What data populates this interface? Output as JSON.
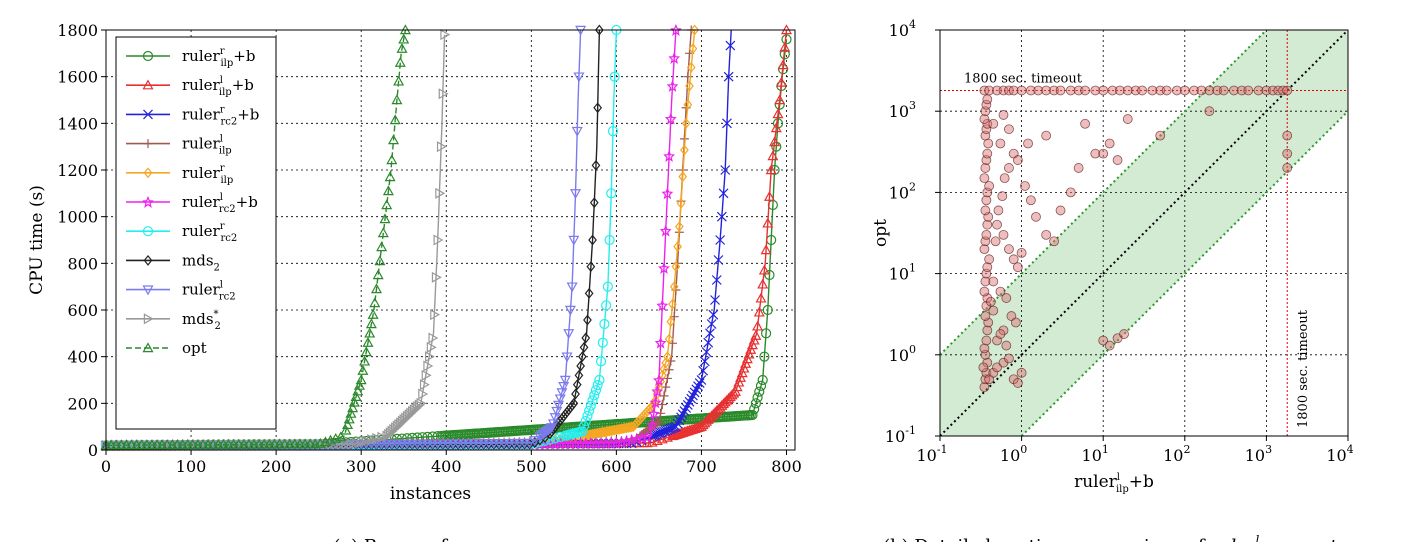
{
  "chart_data": [
    {
      "type": "line",
      "caption": "(a) Raw performance",
      "xlabel": "instances",
      "ylabel": "CPU time (s)",
      "xlim": [
        0,
        810
      ],
      "ylim": [
        0,
        1800
      ],
      "xticks": [
        "0",
        "100",
        "200",
        "300",
        "400",
        "500",
        "600",
        "700",
        "800"
      ],
      "yticks": [
        "0",
        "200",
        "400",
        "600",
        "800",
        "1000",
        "1200",
        "1400",
        "1600",
        "1800"
      ],
      "grid": true,
      "legend_position": "upper-left",
      "series": [
        {
          "name": "ruler_ilp^r+b",
          "label_base": "ruler",
          "label_sup": "r",
          "label_sub": "ilp",
          "label_suffix": "+b",
          "color": "#2a8a2a",
          "marker": "circle",
          "dash": false,
          "points": [
            [
              0,
              20
            ],
            [
              250,
              25
            ],
            [
              760,
              150
            ],
            [
              772,
              300
            ],
            [
              778,
              600
            ],
            [
              782,
              900
            ],
            [
              786,
              1200
            ],
            [
              790,
              1400
            ],
            [
              795,
              1600
            ],
            [
              800,
              1760
            ]
          ]
        },
        {
          "name": "ruler_ilp^l+b",
          "label_base": "ruler",
          "label_sup": "l",
          "label_sub": "ilp",
          "label_suffix": "+b",
          "color": "#e83030",
          "marker": "triangle-up",
          "dash": false,
          "points": [
            [
              0,
              20
            ],
            [
              250,
              25
            ],
            [
              640,
              30
            ],
            [
              700,
              100
            ],
            [
              740,
              250
            ],
            [
              765,
              500
            ],
            [
              775,
              800
            ],
            [
              782,
              1200
            ],
            [
              792,
              1500
            ],
            [
              800,
              1800
            ]
          ]
        },
        {
          "name": "ruler_rc2^r+b",
          "label_base": "ruler",
          "label_sup": "r",
          "label_sub": "rc2",
          "label_suffix": "+b",
          "color": "#2222dd",
          "marker": "x",
          "dash": false,
          "points": [
            [
              0,
              20
            ],
            [
              250,
              25
            ],
            [
              620,
              28
            ],
            [
              670,
              100
            ],
            [
              700,
              300
            ],
            [
              715,
              600
            ],
            [
              722,
              900
            ],
            [
              728,
              1200
            ],
            [
              732,
              1600
            ],
            [
              735,
              1800
            ]
          ]
        },
        {
          "name": "ruler_ilp^l",
          "label_base": "ruler",
          "label_sup": "l",
          "label_sub": "ilp",
          "label_suffix": "",
          "color": "#a05a50",
          "marker": "plus",
          "dash": false,
          "points": [
            [
              0,
              20
            ],
            [
              250,
              25
            ],
            [
              620,
              40
            ],
            [
              650,
              120
            ],
            [
              665,
              400
            ],
            [
              672,
              800
            ],
            [
              678,
              1200
            ],
            [
              684,
              1600
            ],
            [
              688,
              1800
            ]
          ]
        },
        {
          "name": "ruler_ilp^r",
          "label_base": "ruler",
          "label_sup": "r",
          "label_sub": "ilp",
          "label_suffix": "",
          "color": "#f5a623",
          "marker": "diamond",
          "dash": false,
          "points": [
            [
              0,
              20
            ],
            [
              500,
              30
            ],
            [
              560,
              60
            ],
            [
              620,
              100
            ],
            [
              645,
              200
            ],
            [
              660,
              400
            ],
            [
              668,
              700
            ],
            [
              675,
              1000
            ],
            [
              682,
              1400
            ],
            [
              692,
              1800
            ]
          ]
        },
        {
          "name": "ruler_rc2^l+b",
          "label_base": "ruler",
          "label_sup": "l",
          "label_sub": "rc2",
          "label_suffix": "+b",
          "color": "#ee22ee",
          "marker": "star",
          "dash": false,
          "points": [
            [
              0,
              20
            ],
            [
              400,
              22
            ],
            [
              600,
              30
            ],
            [
              640,
              60
            ],
            [
              650,
              300
            ],
            [
              655,
              700
            ],
            [
              660,
              1100
            ],
            [
              665,
              1500
            ],
            [
              670,
              1800
            ]
          ]
        },
        {
          "name": "ruler_rc2^r",
          "label_base": "ruler",
          "label_sup": "r",
          "label_sub": "rc2",
          "label_suffix": "",
          "color": "#22eeee",
          "marker": "circle",
          "dash": false,
          "points": [
            [
              0,
              20
            ],
            [
              500,
              25
            ],
            [
              560,
              80
            ],
            [
              580,
              300
            ],
            [
              590,
              700
            ],
            [
              594,
              1100
            ],
            [
              597,
              1500
            ],
            [
              600,
              1800
            ]
          ]
        },
        {
          "name": "mds_2",
          "label_base": "mds",
          "label_sup": "",
          "label_sub": "2",
          "label_suffix": "",
          "color": "#222222",
          "marker": "diamond",
          "dash": false,
          "points": [
            [
              0,
              20
            ],
            [
              500,
              25
            ],
            [
              520,
              60
            ],
            [
              550,
              200
            ],
            [
              565,
              500
            ],
            [
              572,
              900
            ],
            [
              577,
              1300
            ],
            [
              580,
              1800
            ]
          ]
        },
        {
          "name": "ruler_rc2^l",
          "label_base": "ruler",
          "label_sup": "l",
          "label_sub": "rc2",
          "label_suffix": "",
          "color": "#7b7bee",
          "marker": "triangle-down",
          "dash": false,
          "points": [
            [
              0,
              20
            ],
            [
              300,
              25
            ],
            [
              500,
              30
            ],
            [
              525,
              100
            ],
            [
              540,
              300
            ],
            [
              548,
              700
            ],
            [
              552,
              1100
            ],
            [
              555,
              1500
            ],
            [
              558,
              1800
            ]
          ]
        },
        {
          "name": "mds_2^*",
          "label_base": "mds",
          "label_sup": "*",
          "label_sub": "2",
          "label_suffix": "",
          "color": "#999999",
          "marker": "triangle-right",
          "dash": false,
          "points": [
            [
              0,
              20
            ],
            [
              290,
              25
            ],
            [
              330,
              60
            ],
            [
              370,
              200
            ],
            [
              385,
              500
            ],
            [
              390,
              900
            ],
            [
              395,
              1400
            ],
            [
              398,
              1780
            ]
          ]
        },
        {
          "name": "opt",
          "label_base": "opt",
          "label_sup": "",
          "label_sub": "",
          "label_suffix": "",
          "color": "#2a8a2a",
          "marker": "triangle-up",
          "dash": true,
          "points": [
            [
              0,
              20
            ],
            [
              250,
              25
            ],
            [
              280,
              60
            ],
            [
              300,
              300
            ],
            [
              315,
              600
            ],
            [
              325,
              900
            ],
            [
              335,
              1200
            ],
            [
              342,
              1500
            ],
            [
              347,
              1700
            ],
            [
              352,
              1800
            ]
          ]
        }
      ]
    },
    {
      "type": "scatter",
      "caption_prefix": "(b) Detailed runtime comparison of ",
      "caption_italic": "ruler",
      "caption_sup": "l",
      "caption_sub": "ilp",
      "caption_mid": " vs. ",
      "caption_end": "opt",
      "xlabel_base": "ruler",
      "xlabel_sup": "l",
      "xlabel_sub": "ilp",
      "xlabel_suffix": "+b",
      "ylabel": "opt",
      "xscale": "log",
      "yscale": "log",
      "xlim": [
        0.1,
        10000
      ],
      "ylim": [
        0.1,
        10000
      ],
      "tick_exponents": [
        "-1",
        "0",
        "1",
        "2",
        "3",
        "4"
      ],
      "tick_base": "10",
      "timeout_value": 1800,
      "timeout_label": "1800 sec. timeout",
      "band_factor": 10,
      "grid": true,
      "colors": {
        "band_fill": "#d3ead3",
        "band_line": "#2a9a2a",
        "diagonal": "#000000",
        "timeout_line": "#dd0000",
        "point_fill": "#d96c6c",
        "point_edge": "#5a1a1a"
      },
      "points": [
        [
          0.35,
          0.4
        ],
        [
          0.36,
          0.5
        ],
        [
          0.37,
          0.6
        ],
        [
          0.38,
          0.8
        ],
        [
          0.36,
          1.0
        ],
        [
          0.35,
          1.2
        ],
        [
          0.34,
          0.7
        ],
        [
          0.4,
          0.5
        ],
        [
          0.45,
          0.6
        ],
        [
          0.5,
          0.7
        ],
        [
          0.6,
          0.8
        ],
        [
          0.7,
          0.9
        ],
        [
          0.8,
          0.5
        ],
        [
          0.9,
          0.45
        ],
        [
          1.0,
          0.6
        ],
        [
          0.37,
          1.5
        ],
        [
          0.38,
          2.0
        ],
        [
          0.39,
          2.5
        ],
        [
          0.36,
          3.0
        ],
        [
          0.37,
          4.0
        ],
        [
          0.38,
          5.0
        ],
        [
          0.35,
          6.0
        ],
        [
          0.36,
          8.0
        ],
        [
          0.37,
          10
        ],
        [
          0.38,
          12
        ],
        [
          0.4,
          15
        ],
        [
          0.35,
          20
        ],
        [
          0.36,
          25
        ],
        [
          0.37,
          30
        ],
        [
          0.38,
          40
        ],
        [
          0.39,
          50
        ],
        [
          0.36,
          60
        ],
        [
          0.37,
          80
        ],
        [
          0.38,
          100
        ],
        [
          0.4,
          120
        ],
        [
          0.35,
          150
        ],
        [
          0.36,
          200
        ],
        [
          0.37,
          250
        ],
        [
          0.38,
          300
        ],
        [
          0.39,
          400
        ],
        [
          0.36,
          500
        ],
        [
          0.37,
          600
        ],
        [
          0.38,
          700
        ],
        [
          0.35,
          800
        ],
        [
          0.36,
          1000
        ],
        [
          0.37,
          1200
        ],
        [
          0.38,
          1400
        ],
        [
          0.5,
          40
        ],
        [
          0.6,
          30
        ],
        [
          0.7,
          20
        ],
        [
          0.8,
          15
        ],
        [
          0.9,
          12
        ],
        [
          1.0,
          18
        ],
        [
          0.45,
          8
        ],
        [
          0.55,
          6
        ],
        [
          0.65,
          5
        ],
        [
          0.75,
          3
        ],
        [
          0.85,
          2.5
        ],
        [
          0.6,
          2.0
        ],
        [
          0.5,
          1.5
        ],
        [
          0.55,
          1.8
        ],
        [
          0.65,
          1.3
        ],
        [
          0.45,
          3.5
        ],
        [
          0.42,
          4.5
        ],
        [
          0.48,
          25
        ],
        [
          0.52,
          60
        ],
        [
          0.58,
          90
        ],
        [
          0.62,
          150
        ],
        [
          0.7,
          200
        ],
        [
          0.8,
          300
        ],
        [
          0.9,
          250
        ],
        [
          1.1,
          120
        ],
        [
          1.3,
          80
        ],
        [
          1.5,
          50
        ],
        [
          2.0,
          30
        ],
        [
          2.5,
          25
        ],
        [
          3.0,
          60
        ],
        [
          4.0,
          100
        ],
        [
          5.0,
          200
        ],
        [
          1.2,
          400
        ],
        [
          2.0,
          500
        ],
        [
          6.0,
          700
        ],
        [
          8.0,
          300
        ],
        [
          12,
          400
        ],
        [
          15,
          250
        ],
        [
          20,
          800
        ],
        [
          0.45,
          700
        ],
        [
          0.55,
          400
        ],
        [
          0.6,
          900
        ],
        [
          0.7,
          600
        ],
        [
          10,
          1.5
        ],
        [
          12,
          1.3
        ],
        [
          15,
          1.6
        ],
        [
          18,
          1.8
        ],
        [
          10,
          300
        ],
        [
          50,
          500
        ],
        [
          200,
          1000
        ],
        [
          1800,
          300
        ],
        [
          1800,
          500
        ],
        [
          1800,
          200
        ],
        [
          0.35,
          1800
        ],
        [
          0.4,
          1800
        ],
        [
          0.5,
          1800
        ],
        [
          0.6,
          1800
        ],
        [
          0.7,
          1800
        ],
        [
          0.8,
          1800
        ],
        [
          1.0,
          1800
        ],
        [
          1.3,
          1800
        ],
        [
          1.6,
          1800
        ],
        [
          2.0,
          1800
        ],
        [
          2.5,
          1800
        ],
        [
          3.0,
          1800
        ],
        [
          4.0,
          1800
        ],
        [
          5.0,
          1800
        ],
        [
          6.0,
          1800
        ],
        [
          8.0,
          1800
        ],
        [
          10,
          1800
        ],
        [
          13,
          1800
        ],
        [
          16,
          1800
        ],
        [
          20,
          1800
        ],
        [
          25,
          1800
        ],
        [
          30,
          1800
        ],
        [
          40,
          1800
        ],
        [
          50,
          1800
        ],
        [
          60,
          1800
        ],
        [
          80,
          1800
        ],
        [
          100,
          1800
        ],
        [
          130,
          1800
        ],
        [
          160,
          1800
        ],
        [
          200,
          1800
        ],
        [
          250,
          1800
        ],
        [
          300,
          1800
        ],
        [
          400,
          1800
        ],
        [
          500,
          1800
        ],
        [
          600,
          1800
        ],
        [
          800,
          1800
        ],
        [
          1000,
          1800
        ],
        [
          1200,
          1800
        ],
        [
          1400,
          1800
        ],
        [
          1600,
          1800
        ],
        [
          1800,
          1800
        ]
      ]
    }
  ]
}
